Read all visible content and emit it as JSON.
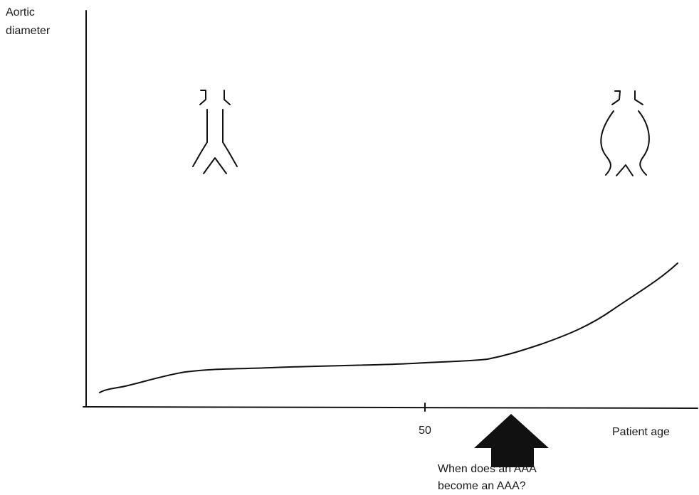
{
  "y_axis_label": [
    "Aortic",
    "diameter"
  ],
  "x_axis_label": "Patient age",
  "x_tick_label": "50",
  "annotation": [
    "When does an AAA",
    "become an AAA?"
  ]
}
